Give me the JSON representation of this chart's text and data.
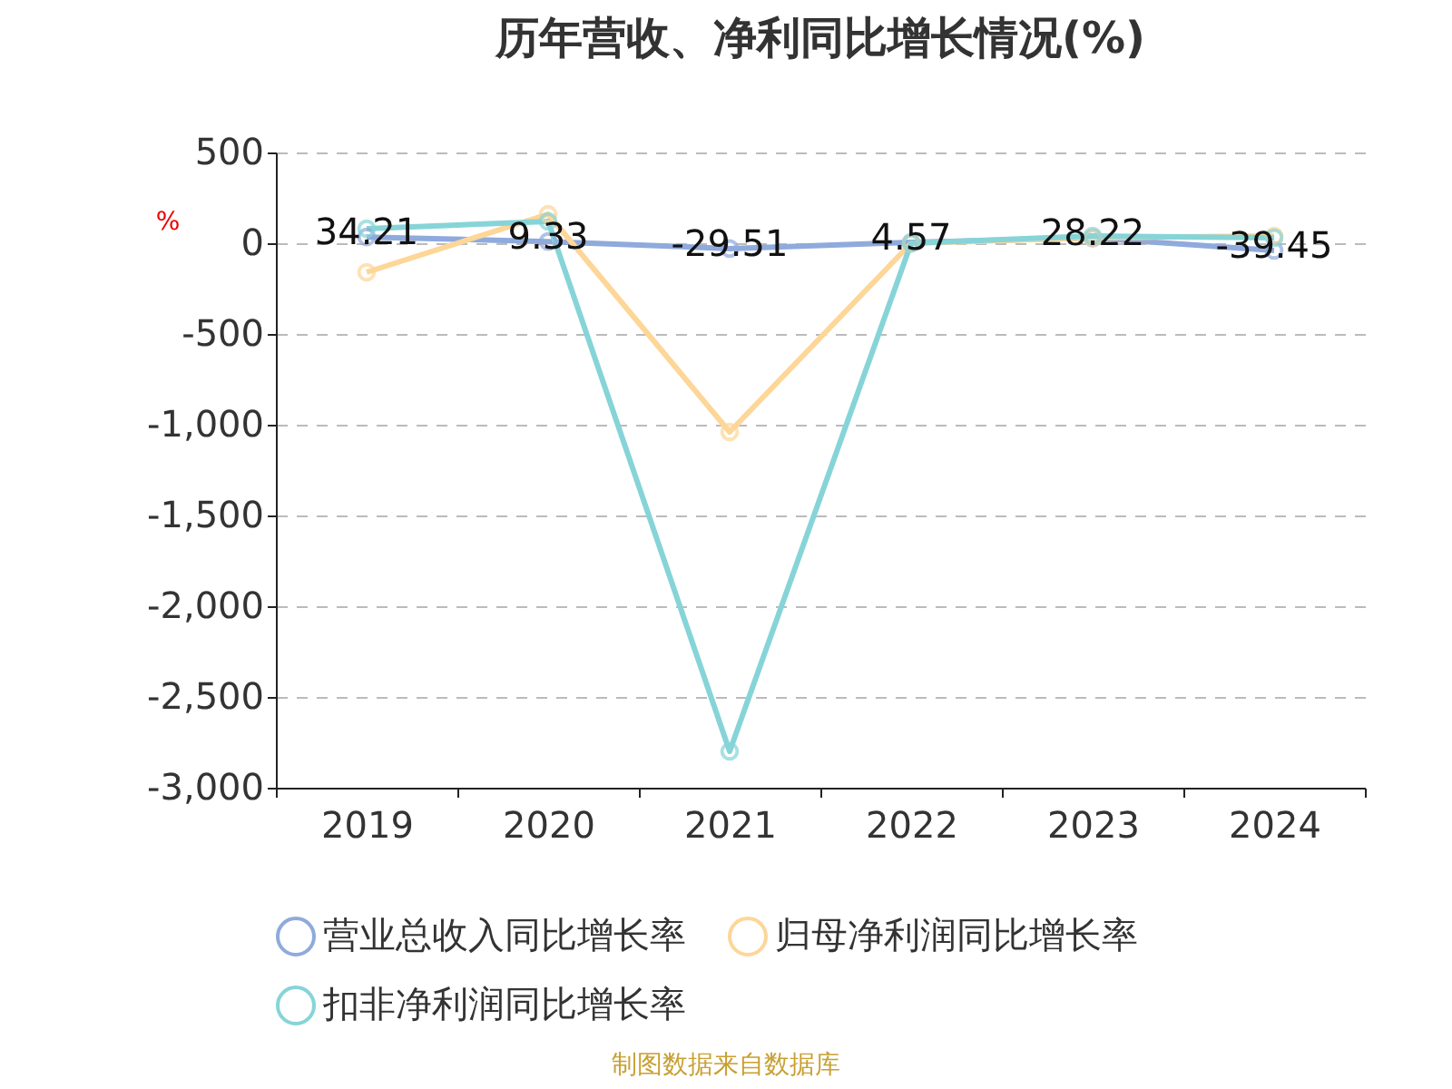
{
  "chart_data": {
    "type": "line",
    "title": "历年营收、净利同比增长情况(%)",
    "ylabel": "%",
    "categories": [
      "2019",
      "2020",
      "2021",
      "2022",
      "2023",
      "2024"
    ],
    "series": [
      {
        "name": "营业总收入同比增长率",
        "color": "#8faadc",
        "values": [
          34.21,
          9.33,
          -29.51,
          4.57,
          28.22,
          -39.45
        ],
        "value_labels": [
          "34.21",
          "9.33",
          "-29.51",
          "4.57",
          "28.22",
          "-39.45"
        ]
      },
      {
        "name": "归母净利润同比增长率",
        "color": "#fdd698",
        "values": [
          -160,
          160,
          -1040,
          0,
          30,
          40
        ]
      },
      {
        "name": "扣非净利润同比增长率",
        "color": "#86d4d8",
        "values": [
          80,
          120,
          -2800,
          0,
          40,
          30
        ]
      }
    ],
    "ylim": [
      -3000,
      500
    ],
    "yticks": [
      {
        "value": -3000,
        "label": "-3,000"
      },
      {
        "value": -2500,
        "label": "-2,500"
      },
      {
        "value": -2000,
        "label": "-2,000"
      },
      {
        "value": -1500,
        "label": "-1,500"
      },
      {
        "value": -1000,
        "label": "-1,000"
      },
      -500,
      0,
      500
    ],
    "grid": "y",
    "legend": "bottom",
    "marker": "circle",
    "line_style": "solid",
    "annotations": [
      "制图数据来自数据库"
    ]
  }
}
